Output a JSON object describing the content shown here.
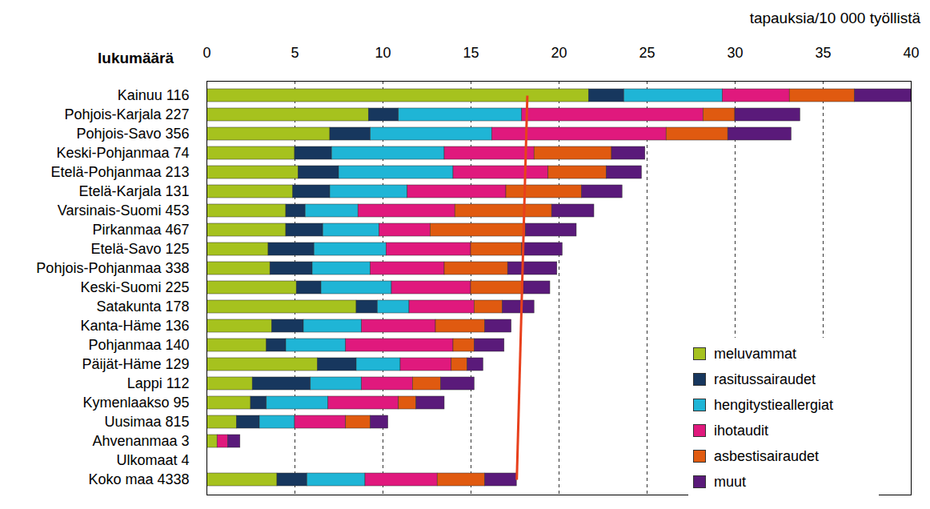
{
  "chart_data": {
    "type": "bar",
    "orientation": "horizontal",
    "stacked": true,
    "x_label": "tapauksia/10 000 työllistä",
    "y_label": "lukumäärä",
    "categories": [
      "Kainuu 116",
      "Pohjois-Karjala 227",
      "Pohjois-Savo 356",
      "Keski-Pohjanmaa 74",
      "Etelä-Pohjanmaa 213",
      "Etelä-Karjala 131",
      "Varsinais-Suomi 453",
      "Pirkanmaa 467",
      "Etelä-Savo 125",
      "Pohjois-Pohjanmaa 338",
      "Keski-Suomi 225",
      "Satakunta 178",
      "Kanta-Häme 136",
      "Pohjanmaa 140",
      "Päijät-Häme 129",
      "Lappi 112",
      "Kymenlaakso 95",
      "Uusimaa 815",
      "Ahvenanmaa 3",
      "Ulkomaat 4",
      "Koko maa 4338"
    ],
    "series": [
      {
        "name": "meluvammat",
        "color": "#a6c21e",
        "values": [
          21.7,
          9.2,
          7.0,
          5.0,
          5.2,
          4.9,
          4.5,
          4.5,
          3.5,
          3.6,
          5.1,
          8.5,
          3.7,
          3.4,
          6.3,
          2.6,
          2.5,
          1.7,
          0.6,
          null,
          4.0
        ]
      },
      {
        "name": "rasitussairaudet",
        "color": "#17375e",
        "values": [
          2.0,
          1.7,
          2.3,
          2.1,
          2.3,
          2.1,
          1.1,
          2.1,
          2.6,
          2.4,
          1.4,
          1.2,
          1.8,
          1.1,
          2.2,
          3.3,
          0.9,
          1.3,
          0,
          null,
          1.7
        ]
      },
      {
        "name": "hengitystieallergiat",
        "color": "#1fb5d6",
        "values": [
          5.6,
          7.0,
          6.9,
          6.4,
          6.5,
          4.4,
          3.0,
          3.2,
          4.1,
          3.3,
          4.0,
          1.8,
          3.3,
          3.4,
          2.5,
          2.9,
          3.5,
          2.0,
          0,
          null,
          3.3
        ]
      },
      {
        "name": "ihotaudit",
        "color": "#e0197d",
        "values": [
          3.8,
          10.3,
          9.9,
          5.1,
          5.4,
          5.6,
          5.5,
          2.9,
          4.8,
          4.2,
          4.5,
          3.7,
          4.2,
          6.1,
          2.9,
          2.9,
          4.0,
          2.9,
          0.6,
          null,
          4.1
        ]
      },
      {
        "name": "asbestisairaudet",
        "color": "#e05a10",
        "values": [
          3.7,
          1.8,
          3.5,
          4.4,
          3.3,
          4.3,
          5.5,
          5.4,
          2.9,
          3.6,
          3.0,
          1.6,
          2.8,
          1.2,
          0.9,
          1.6,
          1.0,
          1.4,
          0,
          null,
          2.7
        ]
      },
      {
        "name": "muut",
        "color": "#5a1a7a",
        "values": [
          3.2,
          3.7,
          3.6,
          1.9,
          2.0,
          2.3,
          2.4,
          2.9,
          2.3,
          2.8,
          1.5,
          1.8,
          1.5,
          1.7,
          0.9,
          1.9,
          1.6,
          1.0,
          0.7,
          null,
          1.8
        ]
      }
    ],
    "reference_line": {
      "x": [
        18.2,
        17.6
      ],
      "color": "#e8401c"
    },
    "xlim": [
      0,
      40
    ],
    "xticks": [
      0,
      5,
      10,
      15,
      20,
      25,
      30,
      35,
      40
    ],
    "grid": true,
    "legend": "bottom-right"
  }
}
